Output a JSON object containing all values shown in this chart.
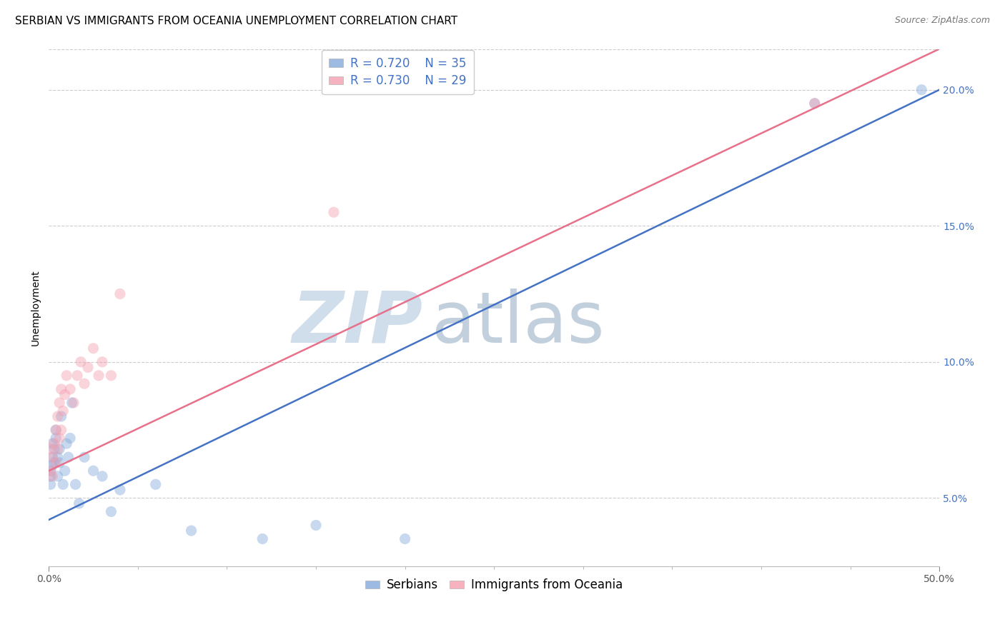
{
  "title": "SERBIAN VS IMMIGRANTS FROM OCEANIA UNEMPLOYMENT CORRELATION CHART",
  "source": "Source: ZipAtlas.com",
  "ylabel": "Unemployment",
  "xlim": [
    0.0,
    0.5
  ],
  "ylim": [
    0.025,
    0.215
  ],
  "y_ticks_right": [
    0.05,
    0.1,
    0.15,
    0.2
  ],
  "y_tick_labels_right": [
    "5.0%",
    "10.0%",
    "15.0%",
    "20.0%"
  ],
  "series1_color": "#85AADB",
  "series2_color": "#F4A0B0",
  "line1_color": "#4472C4",
  "line2_color": "#E8708A",
  "legend_text_color": "#4472C4",
  "legend_r1": "R = 0.720",
  "legend_n1": "N = 35",
  "legend_r2": "R = 0.730",
  "legend_n2": "N = 29",
  "legend_label1": "Serbians",
  "legend_label2": "Immigrants from Oceania",
  "watermark_zip": "ZIP",
  "watermark_atlas": "atlas",
  "background_color": "#FFFFFF",
  "grid_color": "#CCCCCC",
  "title_fontsize": 11,
  "source_fontsize": 9,
  "axis_label_fontsize": 10,
  "legend_fontsize": 12,
  "tick_fontsize": 10,
  "marker_size": 120,
  "marker_alpha": 0.45,
  "line_width": 1.8,
  "serbian_x": [
    0.001,
    0.001,
    0.001,
    0.002,
    0.002,
    0.002,
    0.003,
    0.003,
    0.004,
    0.004,
    0.005,
    0.005,
    0.006,
    0.006,
    0.007,
    0.008,
    0.009,
    0.01,
    0.011,
    0.012,
    0.013,
    0.015,
    0.017,
    0.02,
    0.025,
    0.03,
    0.035,
    0.04,
    0.06,
    0.08,
    0.12,
    0.15,
    0.2,
    0.43,
    0.49
  ],
  "serbian_y": [
    0.06,
    0.055,
    0.058,
    0.062,
    0.065,
    0.07,
    0.068,
    0.063,
    0.072,
    0.075,
    0.058,
    0.065,
    0.063,
    0.068,
    0.08,
    0.055,
    0.06,
    0.07,
    0.065,
    0.072,
    0.085,
    0.055,
    0.048,
    0.065,
    0.06,
    0.058,
    0.045,
    0.053,
    0.055,
    0.038,
    0.035,
    0.04,
    0.035,
    0.195,
    0.2
  ],
  "oceania_x": [
    0.001,
    0.001,
    0.002,
    0.002,
    0.003,
    0.004,
    0.004,
    0.005,
    0.005,
    0.006,
    0.006,
    0.007,
    0.007,
    0.008,
    0.009,
    0.01,
    0.012,
    0.014,
    0.016,
    0.018,
    0.02,
    0.022,
    0.025,
    0.028,
    0.03,
    0.035,
    0.04,
    0.16,
    0.43
  ],
  "oceania_y": [
    0.06,
    0.068,
    0.065,
    0.058,
    0.07,
    0.063,
    0.075,
    0.068,
    0.08,
    0.072,
    0.085,
    0.075,
    0.09,
    0.082,
    0.088,
    0.095,
    0.09,
    0.085,
    0.095,
    0.1,
    0.092,
    0.098,
    0.105,
    0.095,
    0.1,
    0.095,
    0.125,
    0.155,
    0.195
  ],
  "serbian_line_x0": 0.0,
  "serbian_line_y0": 0.042,
  "serbian_line_x1": 0.5,
  "serbian_line_y1": 0.2,
  "oceania_line_x0": 0.0,
  "oceania_line_y0": 0.06,
  "oceania_line_x1": 0.5,
  "oceania_line_y1": 0.215
}
